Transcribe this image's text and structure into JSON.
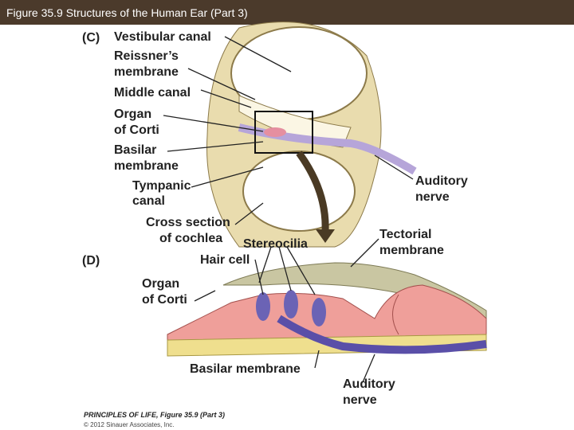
{
  "header": {
    "title": "Figure 35.9  Structures of the Human Ear (Part 3)"
  },
  "panels": [
    {
      "label": "(C)",
      "labels": [
        {
          "lines": [
            "Vestibular canal"
          ]
        },
        {
          "lines": [
            "Reissner’s",
            "membrane"
          ]
        },
        {
          "lines": [
            "Middle canal"
          ]
        },
        {
          "lines": [
            "Organ",
            "of Corti"
          ]
        },
        {
          "lines": [
            "Basilar",
            "membrane"
          ]
        },
        {
          "lines": [
            "Tympanic",
            "canal"
          ]
        },
        {
          "lines": [
            "Cross section",
            "of cochlea"
          ]
        },
        {
          "lines": [
            "Auditory",
            "nerve"
          ]
        }
      ]
    },
    {
      "label": "(D)",
      "labels": [
        {
          "lines": [
            "Tectorial",
            "membrane"
          ]
        },
        {
          "lines": [
            "Stereocilia"
          ]
        },
        {
          "lines": [
            "Hair cell"
          ]
        },
        {
          "lines": [
            "Organ",
            "of Corti"
          ]
        },
        {
          "lines": [
            "Basilar membrane"
          ]
        },
        {
          "lines": [
            "Auditory",
            "nerve"
          ]
        }
      ]
    }
  ],
  "footer": {
    "credit": "PRINCIPLES OF LIFE, Figure 35.9 (Part 3)",
    "copyright": "© 2012 Sinauer Associates, Inc."
  }
}
